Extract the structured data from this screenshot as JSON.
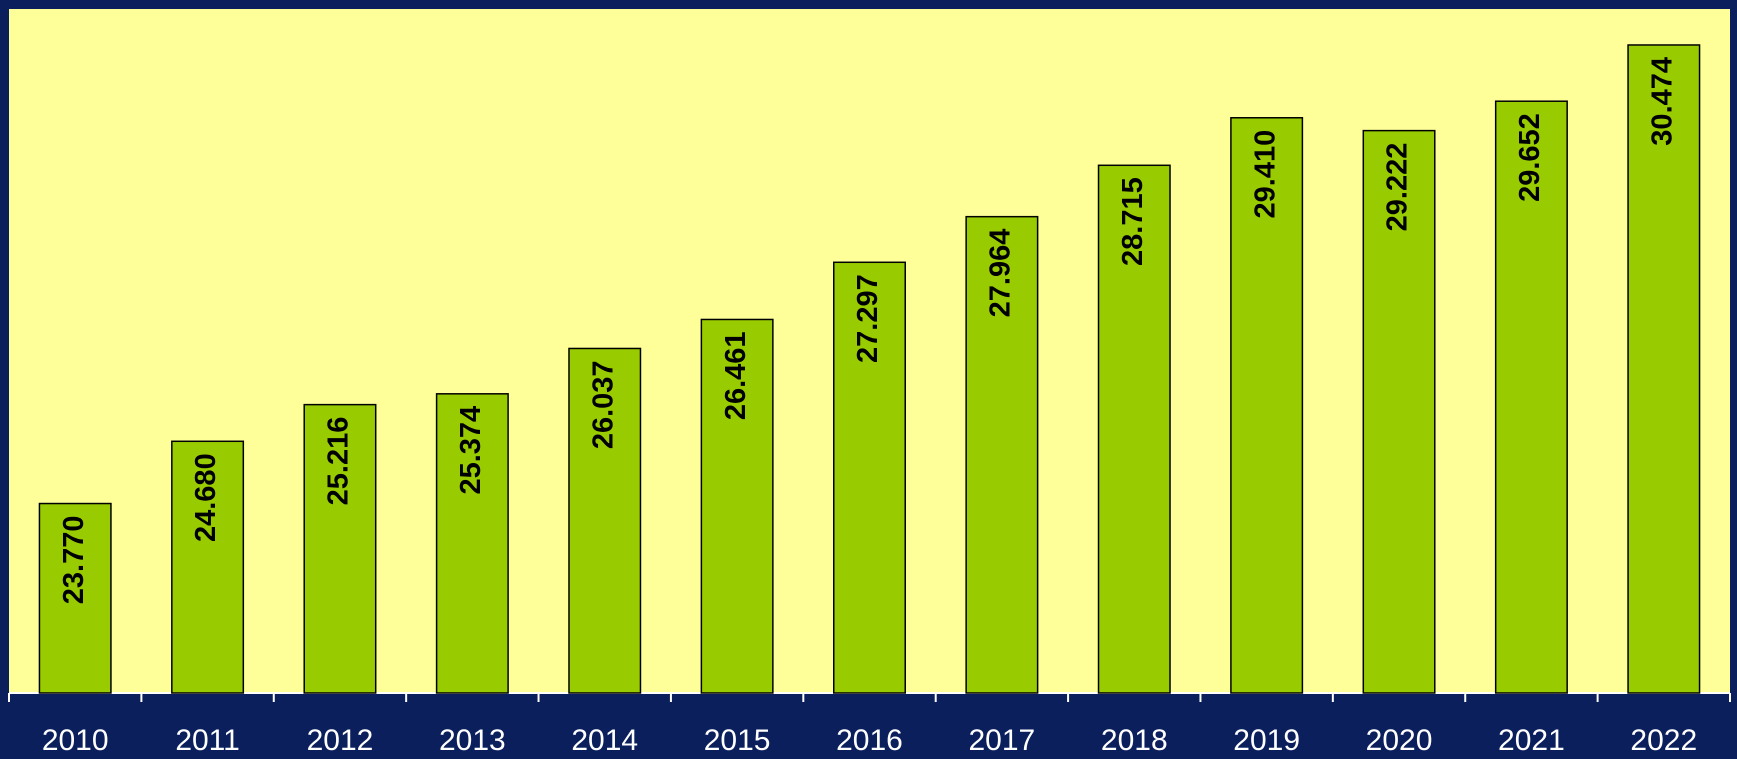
{
  "chart_data": {
    "type": "bar",
    "categories": [
      "2010",
      "2011",
      "2012",
      "2013",
      "2014",
      "2015",
      "2016",
      "2017",
      "2018",
      "2019",
      "2020",
      "2021",
      "2022"
    ],
    "values": [
      23.77,
      24.68,
      25.216,
      25.374,
      26.037,
      26.461,
      27.297,
      27.964,
      28.715,
      29.41,
      29.222,
      29.652,
      30.474
    ],
    "value_labels": [
      "23.770",
      "24.680",
      "25.216",
      "25.374",
      "26.037",
      "26.461",
      "27.297",
      "27.964",
      "28.715",
      "29.410",
      "29.222",
      "29.652",
      "30.474"
    ],
    "color": "#99cc00",
    "ylim": [
      21,
      31
    ]
  }
}
